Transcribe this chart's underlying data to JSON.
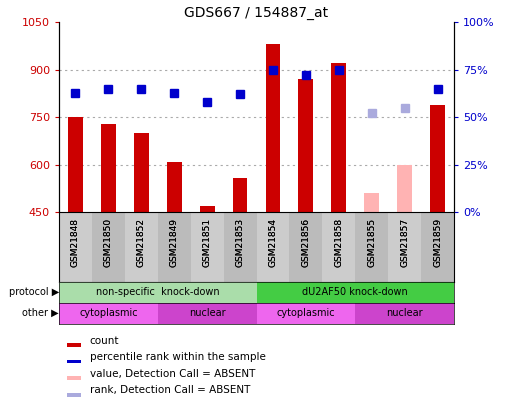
{
  "title": "GDS667 / 154887_at",
  "samples": [
    "GSM21848",
    "GSM21850",
    "GSM21852",
    "GSM21849",
    "GSM21851",
    "GSM21853",
    "GSM21854",
    "GSM21856",
    "GSM21858",
    "GSM21855",
    "GSM21857",
    "GSM21859"
  ],
  "counts": [
    750,
    730,
    700,
    610,
    470,
    560,
    980,
    870,
    920,
    null,
    null,
    790
  ],
  "counts_absent": [
    null,
    null,
    null,
    null,
    null,
    null,
    null,
    null,
    null,
    510,
    600,
    null
  ],
  "percentile_ranks": [
    63,
    65,
    65,
    63,
    58,
    62,
    75,
    72,
    75,
    null,
    null,
    65
  ],
  "percentile_ranks_absent": [
    null,
    null,
    null,
    null,
    null,
    null,
    null,
    null,
    null,
    52,
    55,
    null
  ],
  "ylim_left": [
    450,
    1050
  ],
  "ylim_right": [
    0,
    100
  ],
  "yticks_left": [
    450,
    600,
    750,
    900,
    1050
  ],
  "yticks_right": [
    0,
    25,
    50,
    75,
    100
  ],
  "bar_color": "#cc0000",
  "bar_absent_color": "#ffb3b3",
  "dot_color": "#0000cc",
  "dot_absent_color": "#aaaadd",
  "grid_color": "#aaaaaa",
  "bg_color": "#ffffff",
  "plot_bg_color": "#ffffff",
  "xtick_bg_color": "#cccccc",
  "protocol_groups": [
    {
      "label": "non-specific  knock-down",
      "start": 0,
      "end": 6,
      "color": "#aaddaa"
    },
    {
      "label": "dU2AF50 knock-down",
      "start": 6,
      "end": 12,
      "color": "#44cc44"
    }
  ],
  "other_groups": [
    {
      "label": "cytoplasmic",
      "start": 0,
      "end": 3,
      "color": "#ee66ee"
    },
    {
      "label": "nuclear",
      "start": 3,
      "end": 6,
      "color": "#cc44cc"
    },
    {
      "label": "cytoplasmic",
      "start": 6,
      "end": 9,
      "color": "#ee66ee"
    },
    {
      "label": "nuclear",
      "start": 9,
      "end": 12,
      "color": "#cc44cc"
    }
  ],
  "legend_items": [
    {
      "label": "count",
      "color": "#cc0000"
    },
    {
      "label": "percentile rank within the sample",
      "color": "#0000cc"
    },
    {
      "label": "value, Detection Call = ABSENT",
      "color": "#ffb3b3"
    },
    {
      "label": "rank, Detection Call = ABSENT",
      "color": "#aaaadd"
    }
  ],
  "left_label_color": "#cc0000",
  "right_label_color": "#0000cc",
  "bar_width": 0.45,
  "dot_size": 5.5,
  "right_ytick_labels": [
    "0%",
    "25%",
    "50%",
    "75%",
    "100%"
  ]
}
